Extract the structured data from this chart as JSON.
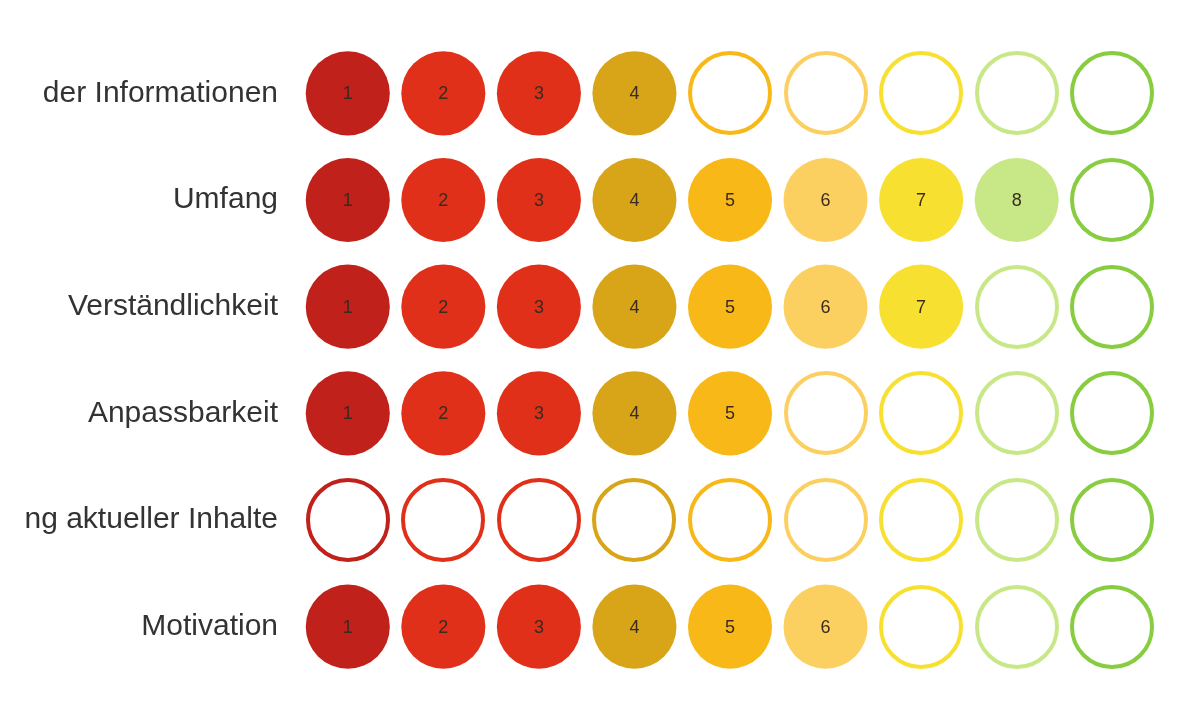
{
  "chart_data": {
    "type": "other",
    "categories": [
      "der Informationen",
      "Umfang",
      "Verständlichkeit",
      "Anpassbarkeit",
      "ng aktueller Inhalte",
      "Motivation"
    ],
    "series": [
      {
        "color": "#c0211a",
        "values": [
          1,
          1,
          1,
          1,
          null,
          1
        ]
      },
      {
        "color": "#e0301a",
        "values": [
          2,
          2,
          2,
          2,
          null,
          2
        ]
      },
      {
        "color": "#e0301a",
        "values": [
          3,
          3,
          3,
          3,
          null,
          3
        ]
      },
      {
        "color": "#d8a418",
        "values": [
          4,
          4,
          4,
          4,
          null,
          4
        ]
      },
      {
        "color": "#f8b818",
        "values": [
          null,
          5,
          5,
          5,
          null,
          5
        ]
      },
      {
        "color": "#fcd060",
        "values": [
          null,
          6,
          6,
          null,
          null,
          6
        ]
      },
      {
        "color": "#f8e030",
        "values": [
          null,
          7,
          7,
          null,
          null,
          null
        ]
      },
      {
        "color": "#c8e888",
        "values": [
          null,
          8,
          null,
          null,
          null,
          null
        ]
      },
      {
        "color": "#88cc40",
        "values": [
          null,
          null,
          null,
          null,
          null,
          null
        ]
      }
    ],
    "data_labels": true
  }
}
